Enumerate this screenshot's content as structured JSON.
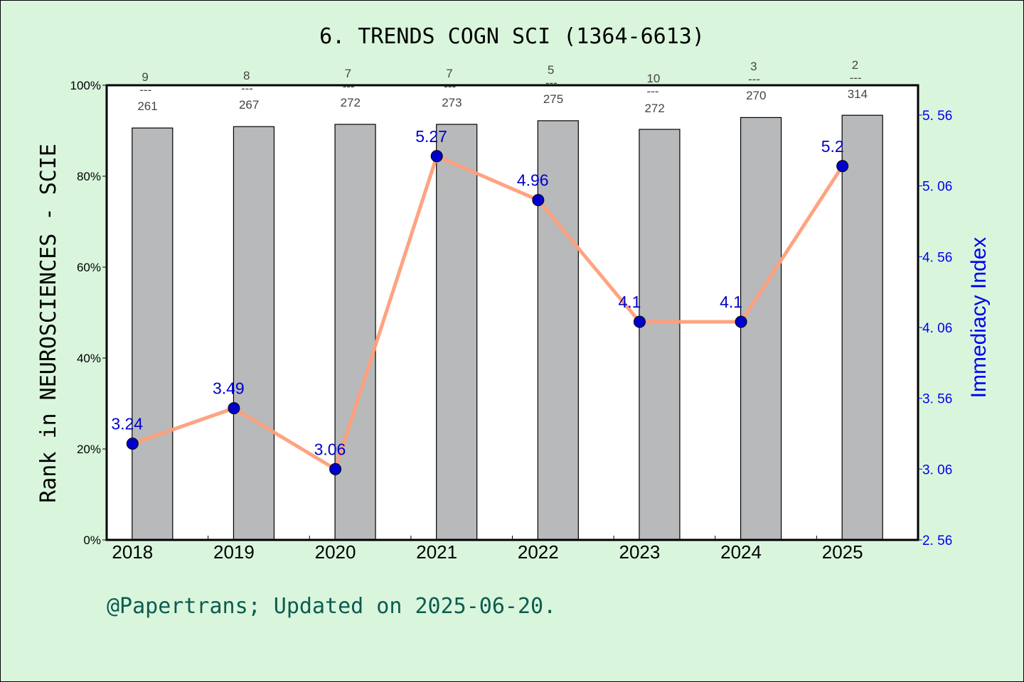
{
  "title": "6. TRENDS COGN SCI (1364-6613)",
  "footer": "@Papertrans; Updated on 2025-06-20.",
  "colors": {
    "background": "#d9f6dd",
    "plot_bg": "#ffffff",
    "bar_fill": "#b8b9bb",
    "line": "#ff9e7a",
    "marker": "#0000cc",
    "right_axis": "#0000ee",
    "footer": "#0b5c4f"
  },
  "chart_data": {
    "type": "bar+line",
    "title": "6. TRENDS COGN SCI (1364-6613)",
    "xlabel": "",
    "ylabel": "Rank in NEUROSCIENCES - SCIE",
    "y2label": "Immediacy Index",
    "categories": [
      "2018",
      "2019",
      "2020",
      "2021",
      "2022",
      "2023",
      "2024",
      "2025"
    ],
    "ylim": [
      0,
      100
    ],
    "yticks": [
      "0%",
      "20%",
      "40%",
      "60%",
      "80%",
      "100%"
    ],
    "y2lim": [
      2.56,
      5.71
    ],
    "y2ticks": [
      "2.56",
      "3.06",
      "3.56",
      "4.06",
      "4.56",
      "5.06",
      "5.56"
    ],
    "grid": false,
    "series": [
      {
        "name": "Rank percentile (bar)",
        "type": "bar",
        "axis": "left",
        "values": [
          90.6,
          90.9,
          91.4,
          91.4,
          92.2,
          90.3,
          92.9,
          93.4
        ]
      },
      {
        "name": "Immediacy Index",
        "type": "line",
        "axis": "right",
        "values": [
          3.24,
          3.49,
          3.06,
          5.27,
          4.96,
          4.1,
          4.1,
          5.2
        ],
        "labels": [
          "3.24",
          "3.49",
          "3.06",
          "5.27",
          "4.96",
          "4.1",
          "4.1",
          "5.2"
        ]
      }
    ],
    "rank_annotations": [
      {
        "rank": "9",
        "total": "261"
      },
      {
        "rank": "8",
        "total": "267"
      },
      {
        "rank": "7",
        "total": "272"
      },
      {
        "rank": "7",
        "total": "273"
      },
      {
        "rank": "5",
        "total": "275"
      },
      {
        "rank": "10",
        "total": "272"
      },
      {
        "rank": "3",
        "total": "270"
      },
      {
        "rank": "2",
        "total": "314"
      }
    ],
    "annotation_separator": "---"
  }
}
